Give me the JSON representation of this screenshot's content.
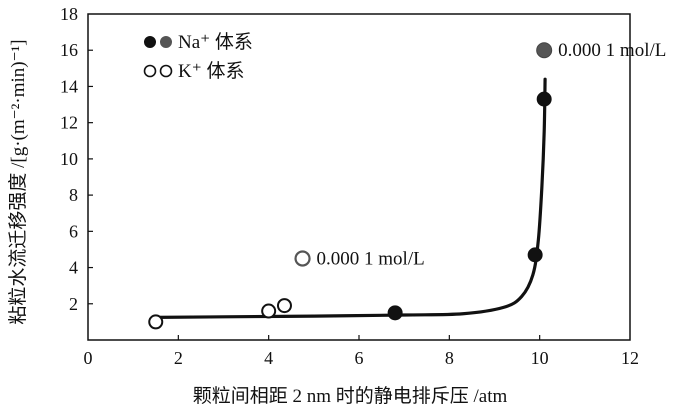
{
  "chart_data": {
    "type": "scatter",
    "xlabel": "颗粒间相距 2 nm 时的静电排斥压 /atm",
    "ylabel": "粘粒水流迁移强度 /[g·(m⁻²·min)⁻¹]",
    "xlim": [
      0,
      12
    ],
    "ylim": [
      0,
      18
    ],
    "xticks": [
      0,
      2,
      4,
      6,
      8,
      10,
      12
    ],
    "yticks": [
      2,
      4,
      6,
      8,
      10,
      12,
      14,
      16,
      18
    ],
    "grid": false,
    "legend_position": "top-left",
    "series": [
      {
        "name": "Na⁺ 体系",
        "marker": "filled",
        "color": "#111111",
        "points": [
          [
            6.8,
            1.5
          ],
          [
            9.9,
            4.7
          ],
          [
            10.1,
            13.3
          ]
        ]
      },
      {
        "name": "K⁺ 体系",
        "marker": "open",
        "color": "#111111",
        "points": [
          [
            1.5,
            1.0
          ],
          [
            4.0,
            1.6
          ],
          [
            4.35,
            1.9
          ]
        ]
      }
    ],
    "fit_curve": {
      "points": [
        [
          1.5,
          1.25
        ],
        [
          3,
          1.28
        ],
        [
          5,
          1.32
        ],
        [
          7,
          1.38
        ],
        [
          8.3,
          1.45
        ],
        [
          9.2,
          1.8
        ],
        [
          9.6,
          2.4
        ],
        [
          9.85,
          3.6
        ],
        [
          9.97,
          5.5
        ],
        [
          10.05,
          8.5
        ],
        [
          10.1,
          11.5
        ],
        [
          10.12,
          14.4
        ]
      ]
    },
    "annotations": [
      {
        "text": "0.000 1 mol/L",
        "x": 10.1,
        "y": 16.0,
        "marker": "filled-gray"
      },
      {
        "text": "0.000 1 mol/L",
        "x": 4.75,
        "y": 4.5,
        "marker": "open-gray"
      }
    ]
  }
}
